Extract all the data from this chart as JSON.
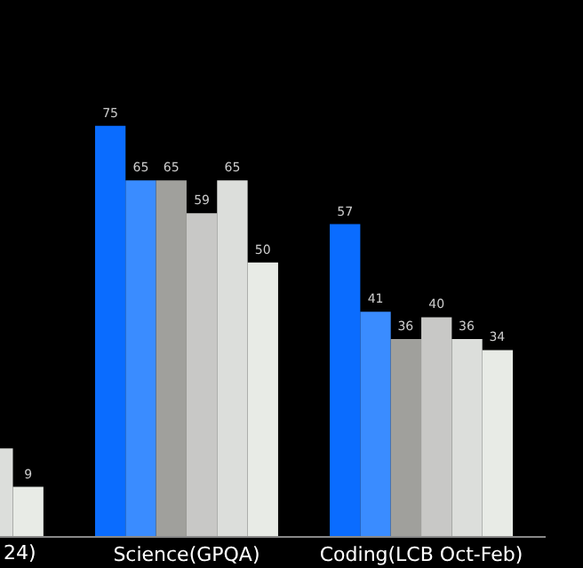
{
  "chart_data": {
    "type": "bar",
    "categories": [
      "24)",
      "Science(GPQA)",
      "Coding(LCB Oct-Feb)"
    ],
    "grid": false,
    "series": [
      {
        "color": "#0a6cff",
        "values": [
          null,
          75,
          57
        ],
        "value_labels": [
          null,
          "75",
          "57"
        ]
      },
      {
        "color": "#3a8cff",
        "values": [
          null,
          65,
          41
        ],
        "value_labels": [
          null,
          "65",
          "41"
        ]
      },
      {
        "color": "#a0a09c",
        "values": [
          null,
          65,
          36
        ],
        "value_labels": [
          null,
          "65",
          "36"
        ]
      },
      {
        "color": "#c8c8c6",
        "values": [
          null,
          59,
          40
        ],
        "value_labels": [
          null,
          "59",
          "40"
        ]
      },
      {
        "color": "#dcdedb",
        "values": [
          16,
          65,
          36
        ],
        "value_labels": [
          null,
          "65",
          "36"
        ]
      },
      {
        "color": "#e8ebe6",
        "values": [
          9,
          50,
          34
        ],
        "value_labels": [
          "9",
          "50",
          "34"
        ]
      }
    ]
  }
}
